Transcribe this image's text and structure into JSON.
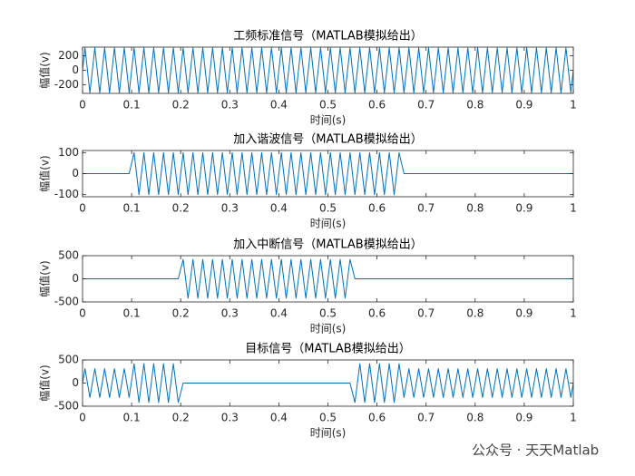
{
  "watermark": "公众号 · 天天Matlab",
  "chart_data": [
    {
      "type": "line",
      "title": "工频标准信号（MATLAB模拟给出）",
      "x_label": "时间(s)",
      "y_label": "幅值(v)",
      "xlim": [
        0,
        1
      ],
      "xticks": [
        0,
        0.1,
        0.2,
        0.3,
        0.4,
        0.5,
        0.6,
        0.7,
        0.8,
        0.9,
        1
      ],
      "ylim": [
        -320,
        320
      ],
      "yticks": [
        -200,
        0,
        200
      ],
      "grid": false,
      "x": [
        0,
        0.005,
        0.015,
        0.025,
        0.035,
        0.045,
        0.055,
        0.065,
        0.075,
        0.085,
        0.095,
        0.105,
        0.115,
        0.125,
        0.135,
        0.145,
        0.155,
        0.165,
        0.175,
        0.185,
        0.195,
        0.205,
        0.215,
        0.225,
        0.235,
        0.245,
        0.255,
        0.265,
        0.275,
        0.285,
        0.295,
        0.305,
        0.315,
        0.325,
        0.335,
        0.345,
        0.355,
        0.365,
        0.375,
        0.385,
        0.395,
        0.405,
        0.415,
        0.425,
        0.435,
        0.445,
        0.455,
        0.465,
        0.475,
        0.485,
        0.495,
        0.505,
        0.515,
        0.525,
        0.535,
        0.545,
        0.555,
        0.565,
        0.575,
        0.585,
        0.595,
        0.605,
        0.615,
        0.625,
        0.635,
        0.645,
        0.655,
        0.665,
        0.675,
        0.685,
        0.695,
        0.705,
        0.715,
        0.725,
        0.735,
        0.745,
        0.755,
        0.765,
        0.775,
        0.785,
        0.795,
        0.805,
        0.815,
        0.825,
        0.835,
        0.845,
        0.855,
        0.865,
        0.875,
        0.885,
        0.895,
        0.905,
        0.915,
        0.925,
        0.935,
        0.945,
        0.955,
        0.965,
        0.975,
        0.985,
        0.995,
        1
      ],
      "series": [
        {
          "color": "#0072bd",
          "values": [
            0,
            311,
            -311,
            311,
            -311,
            311,
            -311,
            311,
            -311,
            311,
            -311,
            311,
            -311,
            311,
            -311,
            311,
            -311,
            311,
            -311,
            311,
            -311,
            311,
            -311,
            311,
            -311,
            311,
            -311,
            311,
            -311,
            311,
            -311,
            311,
            -311,
            311,
            -311,
            311,
            -311,
            311,
            -311,
            311,
            -311,
            311,
            -311,
            311,
            -311,
            311,
            -311,
            311,
            -311,
            311,
            -311,
            311,
            -311,
            311,
            -311,
            311,
            -311,
            311,
            -311,
            311,
            -311,
            311,
            -311,
            311,
            -311,
            311,
            -311,
            311,
            -311,
            311,
            -311,
            311,
            -311,
            311,
            -311,
            311,
            -311,
            311,
            -311,
            311,
            -311,
            311,
            -311,
            311,
            -311,
            311,
            -311,
            311,
            -311,
            311,
            -311,
            311,
            -311,
            311,
            -311,
            311,
            -311,
            311,
            -311,
            311,
            -311,
            0
          ]
        }
      ]
    },
    {
      "type": "line",
      "title": "加入谐波信号（MATLAB模拟给出）",
      "x_label": "时间(s)",
      "y_label": "幅值(v)",
      "xlim": [
        0,
        1
      ],
      "xticks": [
        0,
        0.1,
        0.2,
        0.3,
        0.4,
        0.5,
        0.6,
        0.7,
        0.8,
        0.9,
        1
      ],
      "ylim": [
        -110,
        110
      ],
      "yticks": [
        -100,
        0,
        100
      ],
      "grid": false,
      "x": [
        0,
        0.005,
        0.015,
        0.025,
        0.035,
        0.045,
        0.055,
        0.065,
        0.075,
        0.085,
        0.095,
        0.105,
        0.115,
        0.125,
        0.135,
        0.145,
        0.155,
        0.165,
        0.175,
        0.185,
        0.195,
        0.205,
        0.215,
        0.225,
        0.235,
        0.245,
        0.255,
        0.265,
        0.275,
        0.285,
        0.295,
        0.305,
        0.315,
        0.325,
        0.335,
        0.345,
        0.355,
        0.365,
        0.375,
        0.385,
        0.395,
        0.405,
        0.415,
        0.425,
        0.435,
        0.445,
        0.455,
        0.465,
        0.475,
        0.485,
        0.495,
        0.505,
        0.515,
        0.525,
        0.535,
        0.545,
        0.555,
        0.565,
        0.575,
        0.585,
        0.595,
        0.605,
        0.615,
        0.625,
        0.635,
        0.645,
        0.655,
        0.665,
        0.675,
        0.685,
        0.695,
        0.705,
        0.715,
        0.725,
        0.735,
        0.745,
        0.755,
        0.765,
        0.775,
        0.785,
        0.795,
        0.805,
        0.815,
        0.825,
        0.835,
        0.845,
        0.855,
        0.865,
        0.875,
        0.885,
        0.895,
        0.905,
        0.915,
        0.925,
        0.935,
        0.945,
        0.955,
        0.965,
        0.975,
        0.985,
        0.995,
        1
      ],
      "series": [
        {
          "color": "#0072bd",
          "values": [
            0,
            0,
            0,
            0,
            0,
            0,
            0,
            0,
            0,
            0,
            0,
            100,
            -100,
            100,
            -100,
            100,
            -100,
            100,
            -100,
            100,
            -100,
            100,
            -100,
            100,
            -100,
            100,
            -100,
            100,
            -100,
            100,
            -100,
            100,
            -100,
            100,
            -100,
            100,
            -100,
            100,
            -100,
            100,
            -100,
            100,
            -100,
            100,
            -100,
            100,
            -100,
            100,
            -100,
            100,
            -100,
            100,
            -100,
            100,
            -100,
            100,
            -100,
            100,
            -100,
            100,
            -100,
            100,
            -100,
            100,
            -100,
            100,
            0,
            0,
            0,
            0,
            0,
            0,
            0,
            0,
            0,
            0,
            0,
            0,
            0,
            0,
            0,
            0,
            0,
            0,
            0,
            0,
            0,
            0,
            0,
            0,
            0,
            0,
            0,
            0,
            0,
            0,
            0,
            0,
            0,
            0,
            0,
            0
          ]
        }
      ]
    },
    {
      "type": "line",
      "title": "加入中断信号（MATLAB模拟给出）",
      "x_label": "时间(s)",
      "y_label": "幅值(v)",
      "xlim": [
        0,
        1
      ],
      "xticks": [
        0,
        0.1,
        0.2,
        0.3,
        0.4,
        0.5,
        0.6,
        0.7,
        0.8,
        0.9,
        1
      ],
      "ylim": [
        -500,
        500
      ],
      "yticks": [
        -500,
        0,
        500
      ],
      "grid": false,
      "x": [
        0,
        0.005,
        0.015,
        0.025,
        0.035,
        0.045,
        0.055,
        0.065,
        0.075,
        0.085,
        0.095,
        0.105,
        0.115,
        0.125,
        0.135,
        0.145,
        0.155,
        0.165,
        0.175,
        0.185,
        0.195,
        0.205,
        0.215,
        0.225,
        0.235,
        0.245,
        0.255,
        0.265,
        0.275,
        0.285,
        0.295,
        0.305,
        0.315,
        0.325,
        0.335,
        0.345,
        0.355,
        0.365,
        0.375,
        0.385,
        0.395,
        0.405,
        0.415,
        0.425,
        0.435,
        0.445,
        0.455,
        0.465,
        0.475,
        0.485,
        0.495,
        0.505,
        0.515,
        0.525,
        0.535,
        0.545,
        0.555,
        0.565,
        0.575,
        0.585,
        0.595,
        0.605,
        0.615,
        0.625,
        0.635,
        0.645,
        0.655,
        0.665,
        0.675,
        0.685,
        0.695,
        0.705,
        0.715,
        0.725,
        0.735,
        0.745,
        0.755,
        0.765,
        0.775,
        0.785,
        0.795,
        0.805,
        0.815,
        0.825,
        0.835,
        0.845,
        0.855,
        0.865,
        0.875,
        0.885,
        0.895,
        0.905,
        0.915,
        0.925,
        0.935,
        0.945,
        0.955,
        0.965,
        0.975,
        0.985,
        0.995,
        1
      ],
      "series": [
        {
          "color": "#0072bd",
          "values": [
            0,
            0,
            0,
            0,
            0,
            0,
            0,
            0,
            0,
            0,
            0,
            0,
            0,
            0,
            0,
            0,
            0,
            0,
            0,
            0,
            0,
            420,
            -420,
            420,
            -420,
            420,
            -420,
            420,
            -420,
            420,
            -420,
            420,
            -420,
            420,
            -420,
            420,
            -420,
            420,
            -420,
            420,
            -420,
            420,
            -420,
            420,
            -420,
            420,
            -420,
            420,
            -420,
            420,
            -420,
            420,
            -420,
            420,
            -420,
            420,
            0,
            0,
            0,
            0,
            0,
            0,
            0,
            0,
            0,
            0,
            0,
            0,
            0,
            0,
            0,
            0,
            0,
            0,
            0,
            0,
            0,
            0,
            0,
            0,
            0,
            0,
            0,
            0,
            0,
            0,
            0,
            0,
            0,
            0,
            0,
            0,
            0,
            0,
            0,
            0,
            0,
            0,
            0,
            0,
            0,
            0
          ]
        }
      ]
    },
    {
      "type": "line",
      "title": "目标信号（MATLAB模拟给出）",
      "x_label": "时间(s)",
      "y_label": "幅值(v)",
      "xlim": [
        0,
        1
      ],
      "xticks": [
        0,
        0.1,
        0.2,
        0.3,
        0.4,
        0.5,
        0.6,
        0.7,
        0.8,
        0.9,
        1
      ],
      "ylim": [
        -500,
        500
      ],
      "yticks": [
        -500,
        0,
        500
      ],
      "grid": false,
      "x": [
        0,
        0.005,
        0.015,
        0.025,
        0.035,
        0.045,
        0.055,
        0.065,
        0.075,
        0.085,
        0.095,
        0.105,
        0.115,
        0.125,
        0.135,
        0.145,
        0.155,
        0.165,
        0.175,
        0.185,
        0.195,
        0.205,
        0.215,
        0.225,
        0.235,
        0.245,
        0.255,
        0.265,
        0.275,
        0.285,
        0.295,
        0.305,
        0.315,
        0.325,
        0.335,
        0.345,
        0.355,
        0.365,
        0.375,
        0.385,
        0.395,
        0.405,
        0.415,
        0.425,
        0.435,
        0.445,
        0.455,
        0.465,
        0.475,
        0.485,
        0.495,
        0.505,
        0.515,
        0.525,
        0.535,
        0.545,
        0.555,
        0.565,
        0.575,
        0.585,
        0.595,
        0.605,
        0.615,
        0.625,
        0.635,
        0.645,
        0.655,
        0.665,
        0.675,
        0.685,
        0.695,
        0.705,
        0.715,
        0.725,
        0.735,
        0.745,
        0.755,
        0.765,
        0.775,
        0.785,
        0.795,
        0.805,
        0.815,
        0.825,
        0.835,
        0.845,
        0.855,
        0.865,
        0.875,
        0.885,
        0.895,
        0.905,
        0.915,
        0.925,
        0.935,
        0.945,
        0.955,
        0.965,
        0.975,
        0.985,
        0.995,
        1
      ],
      "series": [
        {
          "color": "#0072bd",
          "values": [
            0,
            311,
            -311,
            311,
            -311,
            311,
            -311,
            311,
            -311,
            311,
            -311,
            420,
            -420,
            420,
            -420,
            420,
            -420,
            420,
            -420,
            420,
            -420,
            0,
            0,
            0,
            0,
            0,
            0,
            0,
            0,
            0,
            0,
            0,
            0,
            0,
            0,
            0,
            0,
            0,
            0,
            0,
            0,
            0,
            0,
            0,
            0,
            0,
            0,
            0,
            0,
            0,
            0,
            0,
            0,
            0,
            0,
            0,
            -420,
            420,
            -420,
            420,
            -420,
            420,
            -420,
            420,
            -420,
            420,
            -311,
            311,
            -311,
            311,
            -311,
            311,
            -311,
            311,
            -311,
            311,
            -311,
            311,
            -311,
            311,
            -311,
            311,
            -311,
            311,
            -311,
            311,
            -311,
            311,
            -311,
            311,
            -311,
            311,
            -311,
            311,
            -311,
            311,
            -311,
            311,
            -311,
            311,
            -311,
            0
          ]
        }
      ]
    }
  ]
}
